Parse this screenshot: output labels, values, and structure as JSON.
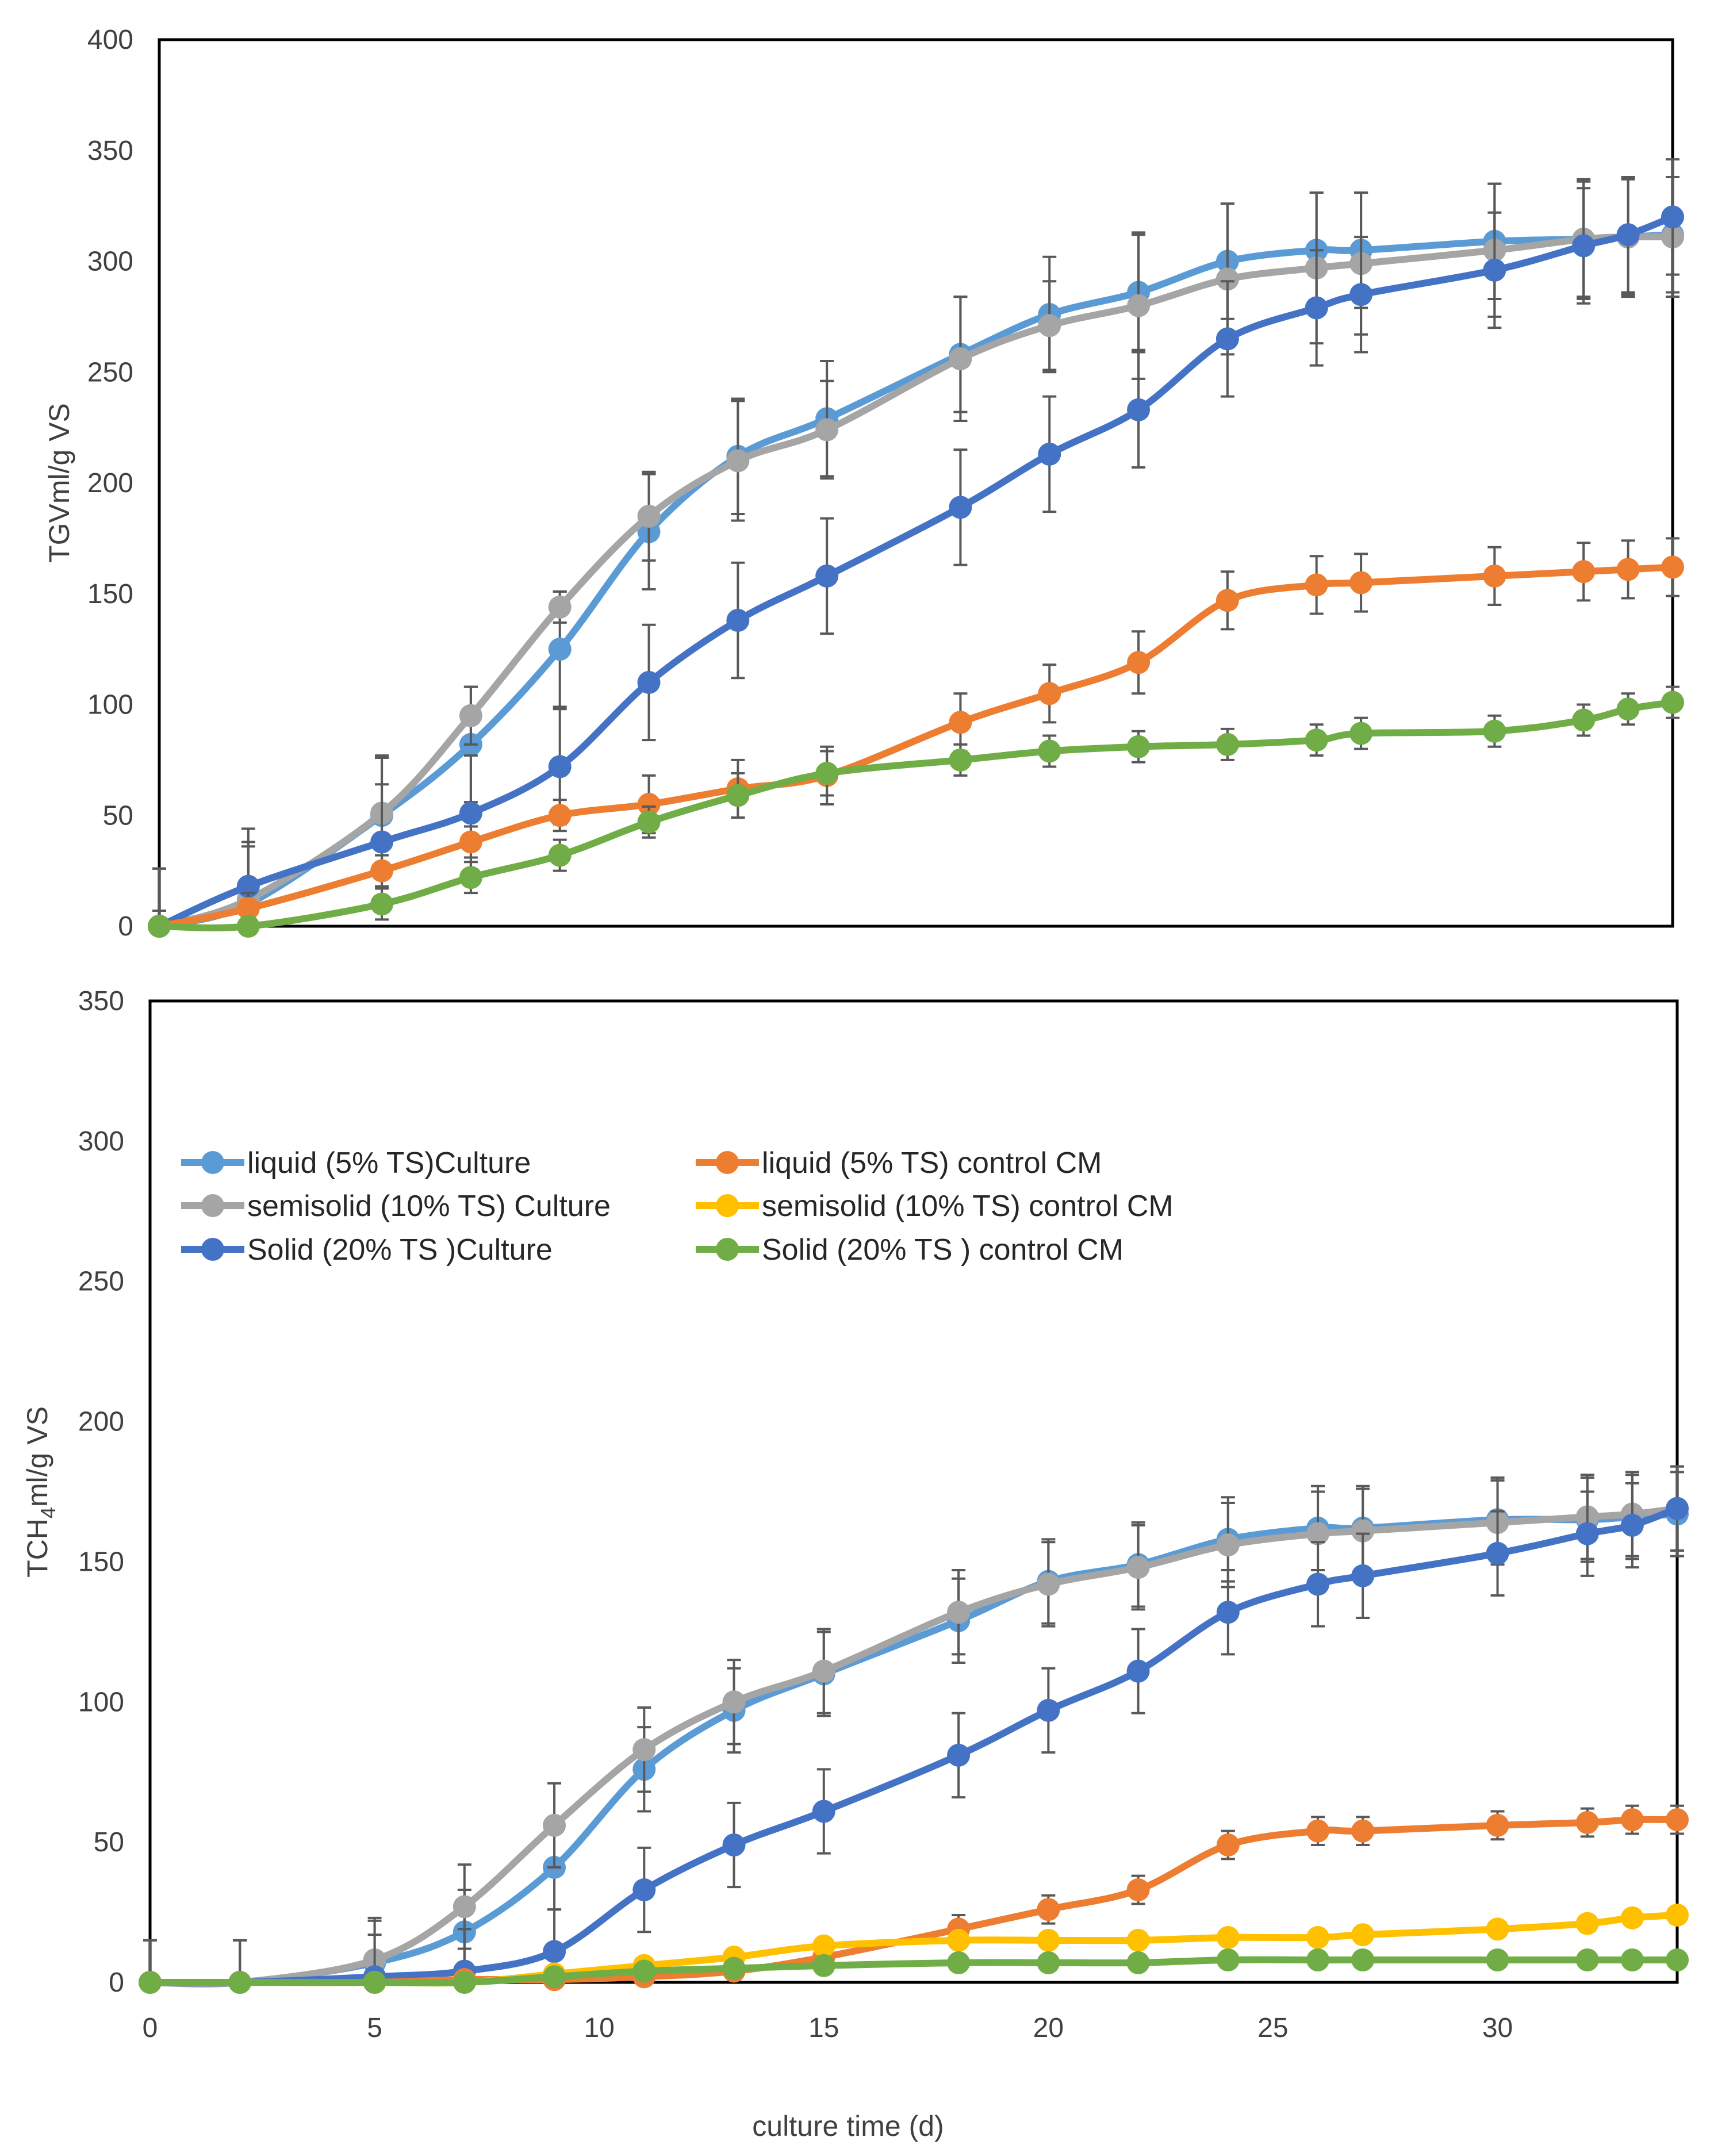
{
  "figure": {
    "x_axis_title": "culture time (d)",
    "x_ticks": [
      0,
      5,
      10,
      15,
      20,
      25,
      30
    ]
  },
  "legend": {
    "items": [
      {
        "key": "liquid_culture",
        "label": "liquid (5% TS)Culture"
      },
      {
        "key": "semisolid_culture",
        "label": "semisolid (10% TS) Culture"
      },
      {
        "key": "solid_culture",
        "label": "Solid (20% TS )Culture"
      },
      {
        "key": "liquid_control",
        "label": "liquid (5% TS) control CM"
      },
      {
        "key": "semisolid_control",
        "label": "semisolid (10% TS) control CM"
      },
      {
        "key": "solid_control",
        "label": "Solid (20% TS ) control CM"
      }
    ]
  },
  "colors": {
    "liquid_culture": "#5b9bd5",
    "semisolid_culture": "#a5a5a5",
    "solid_culture": "#4472c4",
    "liquid_control": "#ed7d31",
    "semisolid_control": "#ffc000",
    "solid_control": "#70ad47",
    "error_bar": "#595959",
    "frame": "#000000"
  },
  "chart_data": [
    {
      "type": "line",
      "panel": "top",
      "ylabel": "TGVml/g VS",
      "xlabel": "",
      "xlim": [
        0,
        34
      ],
      "ylim": [
        0,
        400
      ],
      "y_ticks": [
        0,
        50,
        100,
        150,
        200,
        250,
        300,
        350,
        400
      ],
      "grid": false,
      "x": [
        0,
        2,
        5,
        7,
        9,
        11,
        13,
        15,
        18,
        20,
        22,
        24,
        26,
        27,
        30,
        32,
        33,
        34
      ],
      "series": [
        {
          "key": "liquid_culture",
          "name": "liquid (5% TS)Culture",
          "values": [
            0,
            10,
            50,
            82,
            125,
            178,
            212,
            229,
            258,
            276,
            286,
            300,
            305,
            305,
            309,
            310,
            311,
            312
          ],
          "errors": [
            26,
            26,
            26,
            26,
            26,
            26,
            26,
            26,
            26,
            26,
            26,
            26,
            26,
            26,
            26,
            26,
            26,
            26
          ]
        },
        {
          "key": "semisolid_culture",
          "name": "semisolid (10% TS) Culture",
          "values": [
            0,
            12,
            51,
            95,
            144,
            185,
            210,
            224,
            256,
            271,
            280,
            292,
            297,
            299,
            305,
            310,
            311,
            311
          ],
          "errors": [
            26,
            26,
            26,
            13,
            7,
            20,
            27,
            22,
            28,
            20,
            33,
            34,
            34,
            32,
            30,
            27,
            27,
            27
          ]
        },
        {
          "key": "solid_culture",
          "name": "Solid (20% TS )Culture",
          "values": [
            0,
            18,
            38,
            51,
            72,
            110,
            138,
            158,
            189,
            213,
            233,
            265,
            279,
            285,
            296,
            307,
            312,
            320
          ],
          "errors": [
            26,
            26,
            26,
            26,
            26,
            26,
            26,
            26,
            26,
            26,
            26,
            26,
            26,
            26,
            26,
            26,
            26,
            26
          ]
        },
        {
          "key": "liquid_control",
          "name": "liquid (5% TS) control CM",
          "values": [
            0,
            8,
            25,
            38,
            50,
            55,
            62,
            68,
            92,
            105,
            119,
            147,
            154,
            155,
            158,
            160,
            161,
            162
          ],
          "errors": [
            7,
            7,
            7,
            7,
            7,
            13,
            13,
            13,
            13,
            13,
            14,
            13,
            13,
            13,
            13,
            13,
            13,
            13
          ]
        },
        {
          "key": "solid_control",
          "name": "Solid (20% TS ) control CM",
          "values": [
            0,
            0,
            10,
            22,
            32,
            47,
            59,
            69,
            75,
            79,
            81,
            82,
            84,
            87,
            88,
            93,
            98,
            101
          ],
          "errors": [
            0,
            0,
            7,
            7,
            7,
            7,
            10,
            10,
            7,
            7,
            7,
            7,
            7,
            7,
            7,
            7,
            7,
            7
          ]
        }
      ]
    },
    {
      "type": "line",
      "panel": "bottom",
      "ylabel": "TCH4ml/g VS",
      "xlabel": "culture time (d)",
      "xlim": [
        0,
        34
      ],
      "ylim": [
        0,
        350
      ],
      "y_ticks": [
        0,
        50,
        100,
        150,
        200,
        250,
        300,
        350
      ],
      "grid": false,
      "legend_position": "top-left",
      "x": [
        0,
        2,
        5,
        7,
        9,
        11,
        13,
        15,
        18,
        20,
        22,
        24,
        26,
        27,
        30,
        32,
        33,
        34
      ],
      "series": [
        {
          "key": "liquid_culture",
          "name": "liquid (5% TS)Culture",
          "values": [
            0,
            0,
            7,
            18,
            41,
            76,
            97,
            110,
            129,
            143,
            149,
            158,
            162,
            162,
            165,
            165,
            166,
            167
          ],
          "errors": [
            15,
            15,
            15,
            15,
            15,
            15,
            15,
            15,
            15,
            15,
            15,
            15,
            15,
            15,
            15,
            15,
            15,
            15
          ]
        },
        {
          "key": "semisolid_culture",
          "name": "semisolid (10% TS) Culture",
          "values": [
            0,
            0,
            8,
            27,
            56,
            83,
            100,
            111,
            132,
            142,
            148,
            156,
            160,
            161,
            164,
            166,
            167,
            169
          ],
          "errors": [
            15,
            15,
            15,
            15,
            15,
            15,
            15,
            15,
            15,
            15,
            15,
            15,
            15,
            15,
            15,
            15,
            15,
            15
          ]
        },
        {
          "key": "solid_culture",
          "name": "Solid (20% TS )Culture",
          "values": [
            0,
            0,
            2,
            4,
            11,
            33,
            49,
            61,
            81,
            97,
            111,
            132,
            142,
            145,
            153,
            160,
            163,
            169
          ],
          "errors": [
            15,
            15,
            15,
            15,
            15,
            15,
            15,
            15,
            15,
            15,
            15,
            15,
            15,
            15,
            15,
            15,
            15,
            15
          ]
        },
        {
          "key": "liquid_control",
          "name": "liquid (5% TS) control CM",
          "values": [
            0,
            0,
            0,
            1,
            1,
            2,
            4,
            9,
            19,
            26,
            33,
            49,
            54,
            54,
            56,
            57,
            58,
            58
          ],
          "errors": [
            0,
            0,
            0,
            0,
            0,
            0,
            0,
            0,
            5,
            5,
            5,
            5,
            5,
            5,
            5,
            5,
            5,
            5
          ]
        },
        {
          "key": "semisolid_control",
          "name": "semisolid (10% TS) control CM",
          "values": [
            0,
            0,
            0,
            0,
            3,
            6,
            9,
            13,
            15,
            15,
            15,
            16,
            16,
            17,
            19,
            21,
            23,
            24
          ],
          "errors": [
            0,
            0,
            0,
            0,
            0,
            0,
            0,
            0,
            0,
            0,
            0,
            0,
            0,
            0,
            0,
            0,
            0,
            0
          ]
        },
        {
          "key": "solid_control",
          "name": "Solid (20% TS ) control CM",
          "values": [
            0,
            0,
            0,
            0,
            2,
            4,
            5,
            6,
            7,
            7,
            7,
            8,
            8,
            8,
            8,
            8,
            8,
            8
          ],
          "errors": [
            0,
            0,
            0,
            0,
            0,
            0,
            0,
            0,
            0,
            0,
            0,
            0,
            0,
            0,
            0,
            0,
            0,
            0
          ]
        }
      ]
    }
  ]
}
